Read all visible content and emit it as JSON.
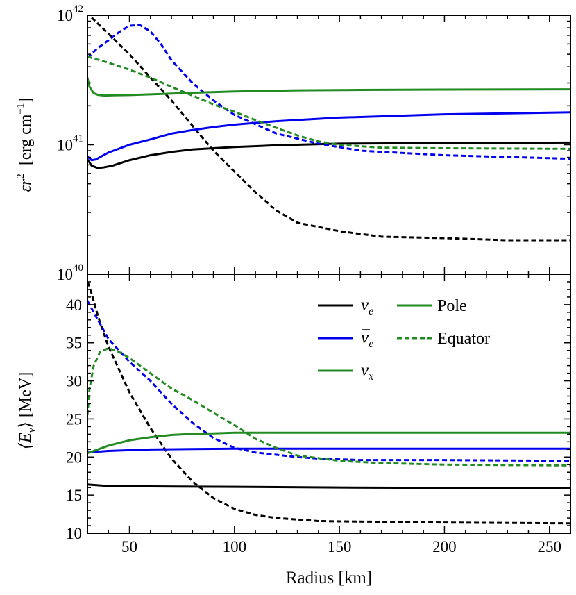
{
  "chart_data": [
    {
      "type": "line",
      "panel": "top",
      "ylabel_main": "εr",
      "ylabel_sup": "2",
      "ylabel_unit": "[erg cm",
      "ylabel_unit_sup": "−1",
      "ylabel_unit_end": "]",
      "yscale": "log",
      "ylim": [
        1e+40,
        1e+42
      ],
      "yticks": [
        {
          "value": 1e+40,
          "base": "10",
          "exp": "40"
        },
        {
          "value": 1e+41,
          "base": "10",
          "exp": "41"
        },
        {
          "value": 1e+42,
          "base": "10",
          "exp": "42"
        }
      ],
      "series": [
        {
          "name": "nu_e pole",
          "color": "#000000",
          "style": "solid",
          "x": [
            30,
            32,
            35,
            38,
            42,
            50,
            60,
            70,
            80,
            90,
            100,
            120,
            150,
            200,
            260
          ],
          "y": [
            7.7e+40,
            6.9e+40,
            6.6e+40,
            6.7e+40,
            6.9e+40,
            7.6e+40,
            8.3e+40,
            8.8e+40,
            9.2e+40,
            9.4e+40,
            9.6e+40,
            9.9e+40,
            1.02e+41,
            1.03e+41,
            1.04e+41
          ]
        },
        {
          "name": "nu_e equator",
          "color": "#000000",
          "style": "dashed",
          "x": [
            32,
            40,
            50,
            60,
            70,
            80,
            90,
            100,
            110,
            120,
            130,
            150,
            170,
            200,
            230,
            260
          ],
          "y": [
            9.6e+41,
            7.2e+41,
            5e+41,
            3.3e+41,
            2.2e+41,
            1.4e+41,
            9e+40,
            6.2e+40,
            4.3e+40,
            3.1e+40,
            2.5e+40,
            2.15e+40,
            1.95e+40,
            1.9e+40,
            1.83e+40,
            1.83e+40
          ]
        },
        {
          "name": "nu_e_bar pole",
          "color": "#0000ee",
          "style": "solid",
          "x": [
            30,
            32,
            34,
            37,
            40,
            50,
            60,
            70,
            80,
            90,
            100,
            120,
            150,
            200,
            260
          ],
          "y": [
            8.1e+40,
            7.6e+40,
            7.7e+40,
            8.2e+40,
            8.7e+40,
            1e+41,
            1.1e+41,
            1.22e+41,
            1.3e+41,
            1.37e+41,
            1.43e+41,
            1.52e+41,
            1.62e+41,
            1.72e+41,
            1.78e+41
          ]
        },
        {
          "name": "nu_e_bar equator",
          "color": "#0000ee",
          "style": "dashed",
          "x": [
            30,
            35,
            40,
            45,
            50,
            55,
            60,
            65,
            70,
            80,
            90,
            100,
            120,
            140,
            160,
            200,
            260
          ],
          "y": [
            4.7e+41,
            5.6e+41,
            6.4e+41,
            7.4e+41,
            8.3e+41,
            8.4e+41,
            7.5e+41,
            6e+41,
            4.5e+41,
            3e+41,
            2.2e+41,
            1.7e+41,
            1.22e+41,
            1.02e+41,
            9e+40,
            8.3e+40,
            7.8e+40
          ]
        },
        {
          "name": "nu_x pole",
          "color": "#228b22",
          "style": "solid",
          "x": [
            30,
            31,
            33,
            35,
            38,
            42,
            50,
            60,
            80,
            100,
            130,
            160,
            200,
            260
          ],
          "y": [
            3.3e+41,
            2.8e+41,
            2.5e+41,
            2.43e+41,
            2.4e+41,
            2.41e+41,
            2.42e+41,
            2.45e+41,
            2.52e+41,
            2.58e+41,
            2.63e+41,
            2.65e+41,
            2.67e+41,
            2.68e+41
          ]
        },
        {
          "name": "nu_x equator",
          "color": "#228b22",
          "style": "dashed",
          "x": [
            30,
            40,
            50,
            60,
            70,
            80,
            90,
            100,
            110,
            120,
            130,
            140,
            150,
            170,
            200,
            260
          ],
          "y": [
            4.8e+41,
            4.3e+41,
            3.8e+41,
            3.3e+41,
            2.8e+41,
            2.4e+41,
            2.05e+41,
            1.8e+41,
            1.55e+41,
            1.35e+41,
            1.18e+41,
            1.06e+41,
            1e+41,
            9.5e+40,
            9.4e+40,
            9.3e+40
          ]
        }
      ]
    },
    {
      "type": "line",
      "panel": "bottom",
      "ylabel_main": "⟨E",
      "ylabel_sub": "ν",
      "ylabel_end": "⟩ [MeV]",
      "xlabel": "Radius [km]",
      "xlim": [
        30,
        260
      ],
      "ylim": [
        10,
        44
      ],
      "xticks": [
        "50",
        "100",
        "150",
        "200",
        "250"
      ],
      "yticks": [
        "10",
        "15",
        "20",
        "25",
        "30",
        "35",
        "40"
      ],
      "legend": {
        "position": "upper-right",
        "species": [
          {
            "label": "ν",
            "sub": "e",
            "bar": false,
            "color": "#000000"
          },
          {
            "label": "ν",
            "sub": "e",
            "bar": true,
            "color": "#0000ee"
          },
          {
            "label": "ν",
            "sub": "x",
            "bar": false,
            "color": "#228b22"
          }
        ],
        "styles": [
          {
            "label": "Pole",
            "style": "solid",
            "color": "#228b22"
          },
          {
            "label": "Equator",
            "style": "dashed",
            "color": "#228b22"
          }
        ]
      },
      "series": [
        {
          "name": "nu_e pole",
          "color": "#000000",
          "style": "solid",
          "x": [
            30,
            40,
            60,
            100,
            150,
            200,
            260
          ],
          "y": [
            16.4,
            16.2,
            16.15,
            16.1,
            16.0,
            15.95,
            15.9
          ]
        },
        {
          "name": "nu_e equator",
          "color": "#000000",
          "style": "dashed",
          "x": [
            30,
            31,
            35,
            40,
            50,
            60,
            70,
            80,
            90,
            100,
            110,
            120,
            140,
            150,
            170,
            200,
            260
          ],
          "y": [
            43.0,
            42.4,
            38.5,
            34.5,
            28.5,
            23.8,
            19.8,
            16.8,
            14.6,
            13.2,
            12.4,
            12.0,
            11.6,
            11.55,
            11.5,
            11.4,
            11.3
          ]
        },
        {
          "name": "nu_e_bar pole",
          "color": "#0000ee",
          "style": "solid",
          "x": [
            30,
            40,
            50,
            60,
            80,
            100,
            150,
            200,
            260
          ],
          "y": [
            20.6,
            20.8,
            20.9,
            21.0,
            21.05,
            21.1,
            21.1,
            21.1,
            21.1
          ]
        },
        {
          "name": "nu_e_bar equator",
          "color": "#0000ee",
          "style": "dashed",
          "x": [
            30,
            35,
            40,
            50,
            60,
            70,
            80,
            90,
            100,
            110,
            120,
            130,
            140,
            160,
            200,
            260
          ],
          "y": [
            40.5,
            38.0,
            35.5,
            32.5,
            30.0,
            27.0,
            24.5,
            22.5,
            21.2,
            20.6,
            20.3,
            20.0,
            19.8,
            19.6,
            19.6,
            19.5
          ]
        },
        {
          "name": "nu_x pole",
          "color": "#228b22",
          "style": "solid",
          "x": [
            30,
            40,
            50,
            60,
            70,
            80,
            90,
            100,
            120,
            150,
            200,
            260
          ],
          "y": [
            20.5,
            21.5,
            22.2,
            22.6,
            22.9,
            23.05,
            23.1,
            23.2,
            23.2,
            23.2,
            23.2,
            23.2
          ]
        },
        {
          "name": "nu_x equator",
          "color": "#228b22",
          "style": "dashed",
          "x": [
            30,
            31,
            33,
            36,
            40,
            45,
            50,
            60,
            70,
            80,
            90,
            100,
            110,
            120,
            130,
            150,
            170,
            200,
            260
          ],
          "y": [
            25.5,
            29.0,
            32.0,
            33.8,
            34.3,
            33.8,
            33.0,
            31.0,
            29.0,
            27.5,
            25.8,
            24.2,
            22.4,
            21.2,
            20.2,
            19.5,
            19.2,
            19.0,
            18.9
          ]
        }
      ]
    }
  ]
}
